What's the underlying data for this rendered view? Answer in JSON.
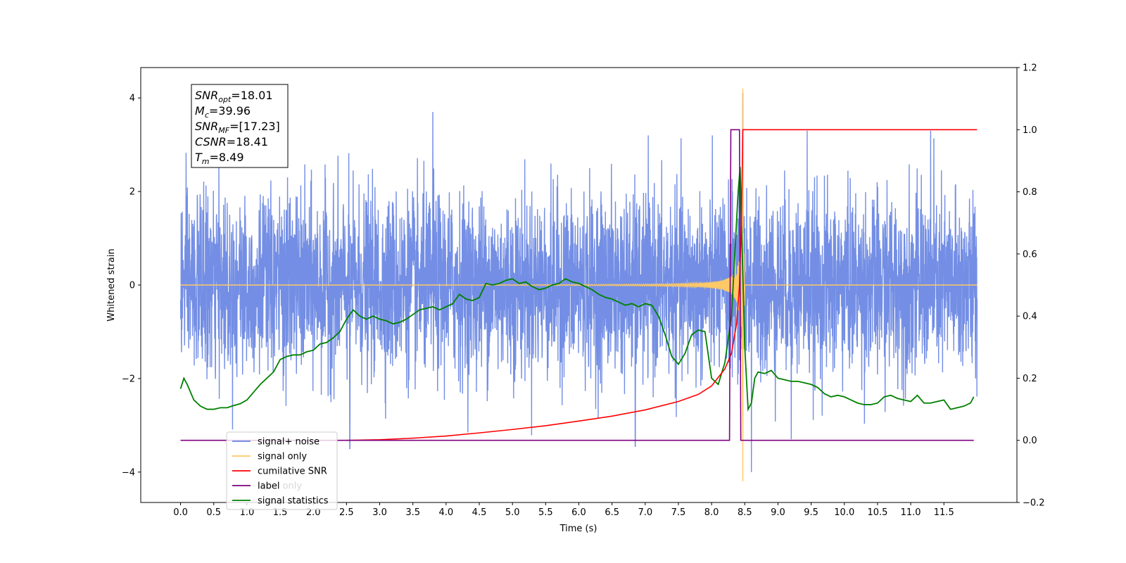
{
  "chart_data": {
    "type": "line",
    "xlabel": "Time (s)",
    "ylabel_left": "Whitened strain",
    "xlim": [
      -0.6,
      12.6
    ],
    "ylim_left": [
      -4.65,
      4.65
    ],
    "ylim_right": [
      -0.2,
      1.2
    ],
    "x_ticks": [
      "0.0",
      "0.5",
      "1.0",
      "1.5",
      "2.0",
      "2.5",
      "3.0",
      "3.5",
      "4.0",
      "4.5",
      "5.0",
      "5.5",
      "6.0",
      "6.5",
      "7.0",
      "7.5",
      "8.0",
      "8.5",
      "9.0",
      "9.5",
      "10.0",
      "10.5",
      "11.0",
      "11.5"
    ],
    "y_left_ticks": [
      "-4",
      "-2",
      "0",
      "2",
      "4"
    ],
    "y_right_ticks": [
      "-0.2",
      "0.0",
      "0.2",
      "0.4",
      "0.6",
      "0.8",
      "1.0",
      "1.2"
    ],
    "grid": false,
    "legend_position": "lower-left",
    "legend": [
      "signal+ noise",
      "signal only",
      "cumilative SNR",
      "label",
      "signal statistics"
    ],
    "legend_ghost_text": [
      "label only",
      "signal statistics"
    ],
    "info_box": {
      "lines": [
        {
          "main": "SNR",
          "sub": "opt",
          "rest": "=18.01"
        },
        {
          "main": "M",
          "sub": "c",
          "rest": "=39.96"
        },
        {
          "main": "SNR",
          "sub": "MF",
          "rest": "=[17.23]"
        },
        {
          "main": "CSNR",
          "sub": "",
          "rest": "=18.41"
        },
        {
          "main": "T",
          "sub": "m",
          "rest": "=8.49"
        }
      ]
    },
    "series": [
      {
        "name": "signal+ noise",
        "color": "#6b88e3",
        "axis": "left",
        "description_only": true,
        "x_range": [
          0.0,
          12.0
        ],
        "amplitude_std": 0.95,
        "notable_peaks": [
          [
            3.8,
            3.7
          ],
          [
            8.47,
            4.1
          ],
          [
            9.44,
            3.3
          ],
          [
            11.3,
            3.3
          ],
          [
            2.55,
            -3.5
          ],
          [
            6.85,
            -3.45
          ],
          [
            8.6,
            -4.0
          ],
          [
            9.2,
            -3.3
          ]
        ]
      },
      {
        "name": "signal only",
        "color": "#ffc966",
        "axis": "left",
        "chirp_start": 5.0,
        "merger_time": 8.47,
        "peak_amplitude": 4.2
      },
      {
        "name": "cumilative SNR",
        "color": "#ff0000",
        "axis": "right",
        "points": [
          [
            2.5,
            0.0
          ],
          [
            3.0,
            0.002
          ],
          [
            3.5,
            0.007
          ],
          [
            4.0,
            0.014
          ],
          [
            4.5,
            0.024
          ],
          [
            5.0,
            0.035
          ],
          [
            5.5,
            0.047
          ],
          [
            6.0,
            0.062
          ],
          [
            6.5,
            0.078
          ],
          [
            7.0,
            0.098
          ],
          [
            7.5,
            0.125
          ],
          [
            7.8,
            0.148
          ],
          [
            8.0,
            0.175
          ],
          [
            8.2,
            0.23
          ],
          [
            8.3,
            0.28
          ],
          [
            8.38,
            0.38
          ],
          [
            8.42,
            0.5
          ],
          [
            8.45,
            0.7
          ],
          [
            8.47,
            1.0
          ],
          [
            12.0,
            1.0
          ]
        ]
      },
      {
        "name": "label",
        "color": "#800080",
        "axis": "right",
        "points": [
          [
            0.0,
            0.0
          ],
          [
            8.27,
            0.0
          ],
          [
            8.29,
            1.0
          ],
          [
            8.42,
            1.0
          ],
          [
            8.44,
            0.0
          ],
          [
            11.95,
            0.0
          ]
        ]
      },
      {
        "name": "signal statistics",
        "color": "#008000",
        "axis": "right",
        "points": [
          [
            0.0,
            0.166
          ],
          [
            0.05,
            0.2
          ],
          [
            0.1,
            0.18
          ],
          [
            0.2,
            0.13
          ],
          [
            0.3,
            0.11
          ],
          [
            0.4,
            0.1
          ],
          [
            0.5,
            0.1
          ],
          [
            0.6,
            0.105
          ],
          [
            0.7,
            0.105
          ],
          [
            0.8,
            0.112
          ],
          [
            0.9,
            0.118
          ],
          [
            1.0,
            0.13
          ],
          [
            1.1,
            0.155
          ],
          [
            1.2,
            0.18
          ],
          [
            1.3,
            0.2
          ],
          [
            1.4,
            0.22
          ],
          [
            1.5,
            0.26
          ],
          [
            1.6,
            0.27
          ],
          [
            1.7,
            0.275
          ],
          [
            1.8,
            0.275
          ],
          [
            1.9,
            0.285
          ],
          [
            2.0,
            0.29
          ],
          [
            2.1,
            0.31
          ],
          [
            2.2,
            0.315
          ],
          [
            2.3,
            0.33
          ],
          [
            2.4,
            0.35
          ],
          [
            2.5,
            0.39
          ],
          [
            2.6,
            0.42
          ],
          [
            2.7,
            0.4
          ],
          [
            2.8,
            0.39
          ],
          [
            2.9,
            0.4
          ],
          [
            3.0,
            0.39
          ],
          [
            3.1,
            0.385
          ],
          [
            3.2,
            0.375
          ],
          [
            3.3,
            0.38
          ],
          [
            3.4,
            0.39
          ],
          [
            3.5,
            0.405
          ],
          [
            3.6,
            0.42
          ],
          [
            3.7,
            0.425
          ],
          [
            3.8,
            0.43
          ],
          [
            3.9,
            0.42
          ],
          [
            4.0,
            0.43
          ],
          [
            4.1,
            0.44
          ],
          [
            4.2,
            0.47
          ],
          [
            4.3,
            0.455
          ],
          [
            4.4,
            0.45
          ],
          [
            4.5,
            0.46
          ],
          [
            4.6,
            0.505
          ],
          [
            4.7,
            0.5
          ],
          [
            4.8,
            0.505
          ],
          [
            4.9,
            0.515
          ],
          [
            5.0,
            0.52
          ],
          [
            5.1,
            0.505
          ],
          [
            5.2,
            0.51
          ],
          [
            5.3,
            0.495
          ],
          [
            5.4,
            0.485
          ],
          [
            5.5,
            0.49
          ],
          [
            5.6,
            0.5
          ],
          [
            5.7,
            0.505
          ],
          [
            5.8,
            0.52
          ],
          [
            5.9,
            0.51
          ],
          [
            6.0,
            0.505
          ],
          [
            6.1,
            0.495
          ],
          [
            6.2,
            0.485
          ],
          [
            6.3,
            0.47
          ],
          [
            6.4,
            0.46
          ],
          [
            6.5,
            0.455
          ],
          [
            6.6,
            0.445
          ],
          [
            6.7,
            0.435
          ],
          [
            6.8,
            0.44
          ],
          [
            6.9,
            0.43
          ],
          [
            7.0,
            0.44
          ],
          [
            7.1,
            0.435
          ],
          [
            7.2,
            0.4
          ],
          [
            7.3,
            0.34
          ],
          [
            7.4,
            0.27
          ],
          [
            7.5,
            0.245
          ],
          [
            7.6,
            0.28
          ],
          [
            7.7,
            0.34
          ],
          [
            7.8,
            0.355
          ],
          [
            7.9,
            0.35
          ],
          [
            8.0,
            0.2
          ],
          [
            8.1,
            0.18
          ],
          [
            8.2,
            0.25
          ],
          [
            8.3,
            0.4
          ],
          [
            8.35,
            0.6
          ],
          [
            8.4,
            0.8
          ],
          [
            8.43,
            0.88
          ],
          [
            8.45,
            0.7
          ],
          [
            8.5,
            0.3
          ],
          [
            8.55,
            0.1
          ],
          [
            8.6,
            0.12
          ],
          [
            8.65,
            0.2
          ],
          [
            8.7,
            0.22
          ],
          [
            8.8,
            0.215
          ],
          [
            8.9,
            0.225
          ],
          [
            9.0,
            0.2
          ],
          [
            9.1,
            0.195
          ],
          [
            9.2,
            0.19
          ],
          [
            9.3,
            0.19
          ],
          [
            9.4,
            0.185
          ],
          [
            9.5,
            0.18
          ],
          [
            9.6,
            0.17
          ],
          [
            9.7,
            0.15
          ],
          [
            9.8,
            0.14
          ],
          [
            9.9,
            0.145
          ],
          [
            10.0,
            0.14
          ],
          [
            10.1,
            0.13
          ],
          [
            10.2,
            0.12
          ],
          [
            10.3,
            0.115
          ],
          [
            10.4,
            0.115
          ],
          [
            10.5,
            0.12
          ],
          [
            10.6,
            0.14
          ],
          [
            10.7,
            0.145
          ],
          [
            10.8,
            0.135
          ],
          [
            10.9,
            0.13
          ],
          [
            11.0,
            0.125
          ],
          [
            11.1,
            0.145
          ],
          [
            11.2,
            0.12
          ],
          [
            11.3,
            0.12
          ],
          [
            11.4,
            0.125
          ],
          [
            11.5,
            0.13
          ],
          [
            11.6,
            0.1
          ],
          [
            11.7,
            0.105
          ],
          [
            11.8,
            0.11
          ],
          [
            11.9,
            0.12
          ],
          [
            11.95,
            0.14
          ]
        ]
      }
    ]
  }
}
